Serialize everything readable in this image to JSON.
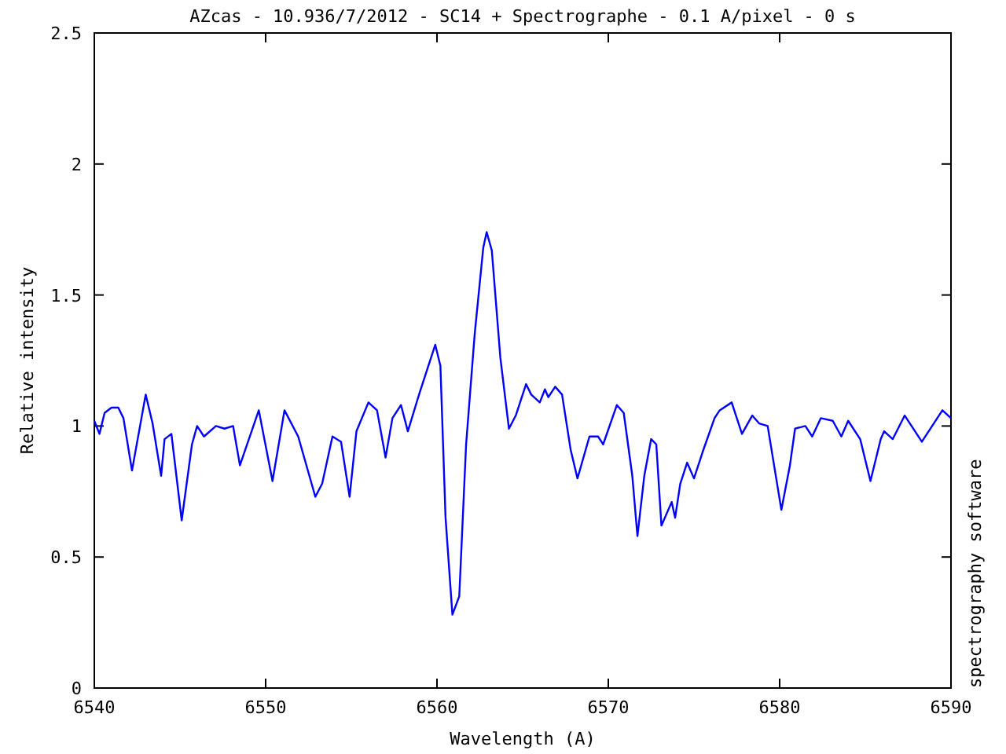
{
  "chart_data": {
    "type": "line",
    "title": "AZcas - 10.936/7/2012 - SC14 + Spectrographe - 0.1 A/pixel - 0 s",
    "xlabel": "Wavelength (A)",
    "ylabel": "Relative intensity",
    "annotations": [
      "spectrography software"
    ],
    "xlim": [
      6540,
      6590
    ],
    "xticks": [
      6540,
      6550,
      6560,
      6570,
      6580,
      6590
    ],
    "ylim": [
      0,
      2.5
    ],
    "yticks": [
      0,
      0.5,
      1,
      1.5,
      2,
      2.5
    ],
    "grid": false,
    "series": [
      {
        "color": "#0000ff",
        "x": [
          6540.0,
          6540.3,
          6540.6,
          6541.0,
          6541.4,
          6541.7,
          6542.2,
          6543.0,
          6543.4,
          6543.9,
          6544.1,
          6544.5,
          6545.1,
          6545.7,
          6546.0,
          6546.4,
          6547.1,
          6547.6,
          6548.1,
          6548.5,
          6549.6,
          6550.4,
          6551.1,
          6551.9,
          6552.9,
          6553.3,
          6553.9,
          6554.4,
          6554.9,
          6555.3,
          6556.0,
          6556.5,
          6557.0,
          6557.4,
          6557.9,
          6558.3,
          6559.0,
          6559.4,
          6559.9,
          6560.2,
          6560.5,
          6560.9,
          6561.3,
          6561.7,
          6562.2,
          6562.7,
          6562.9,
          6563.2,
          6563.7,
          6564.2,
          6564.6,
          6565.2,
          6565.5,
          6566.0,
          6566.3,
          6566.5,
          6566.9,
          6567.3,
          6567.8,
          6568.2,
          6568.9,
          6569.4,
          6569.7,
          6570.5,
          6570.9,
          6571.4,
          6571.7,
          6572.1,
          6572.5,
          6572.8,
          6573.1,
          6573.7,
          6573.9,
          6574.2,
          6574.6,
          6575.0,
          6575.5,
          6576.2,
          6576.5,
          6577.2,
          6577.8,
          6578.4,
          6578.8,
          6579.3,
          6580.1,
          6580.6,
          6580.9,
          6581.5,
          6581.9,
          6582.4,
          6583.1,
          6583.6,
          6584.0,
          6584.7,
          6585.3,
          6585.9,
          6586.1,
          6586.6,
          6587.3,
          6588.3,
          6588.9,
          6589.5,
          6590.0
        ],
        "values": [
          1.02,
          0.97,
          1.05,
          1.07,
          1.07,
          1.03,
          0.83,
          1.12,
          1.01,
          0.81,
          0.95,
          0.97,
          0.64,
          0.93,
          1.0,
          0.96,
          1.0,
          0.99,
          1.0,
          0.85,
          1.06,
          0.79,
          1.06,
          0.96,
          0.73,
          0.78,
          0.96,
          0.94,
          0.73,
          0.98,
          1.09,
          1.06,
          0.88,
          1.03,
          1.08,
          0.98,
          1.13,
          1.21,
          1.31,
          1.23,
          0.65,
          0.28,
          0.35,
          0.93,
          1.35,
          1.68,
          1.74,
          1.67,
          1.26,
          0.99,
          1.04,
          1.16,
          1.12,
          1.09,
          1.14,
          1.11,
          1.15,
          1.12,
          0.91,
          0.8,
          0.96,
          0.96,
          0.93,
          1.08,
          1.05,
          0.81,
          0.58,
          0.81,
          0.95,
          0.93,
          0.62,
          0.71,
          0.65,
          0.78,
          0.86,
          0.8,
          0.9,
          1.03,
          1.06,
          1.09,
          0.97,
          1.04,
          1.01,
          1.0,
          0.68,
          0.85,
          0.99,
          1.0,
          0.96,
          1.03,
          1.02,
          0.96,
          1.02,
          0.95,
          0.79,
          0.95,
          0.98,
          0.95,
          1.04,
          0.94,
          1.0,
          1.06,
          1.03
        ]
      }
    ]
  }
}
